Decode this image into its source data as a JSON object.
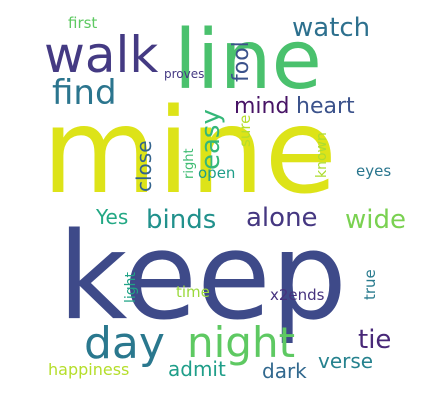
{
  "words": [
    {
      "text": "mine",
      "color": "#dde318"
    },
    {
      "text": "keep",
      "color": "#3e4a89"
    },
    {
      "text": "line",
      "color": "#4ac16d"
    },
    {
      "text": "walk",
      "color": "#443a83"
    },
    {
      "text": "night",
      "color": "#5ec962"
    },
    {
      "text": "day",
      "color": "#2a788e"
    },
    {
      "text": "find",
      "color": "#2b758e"
    },
    {
      "text": "binds",
      "color": "#21918c"
    },
    {
      "text": "alone",
      "color": "#453781"
    },
    {
      "text": "watch",
      "color": "#2d708e"
    },
    {
      "text": "heart",
      "color": "#3b528b"
    },
    {
      "text": "mind",
      "color": "#471365"
    },
    {
      "text": "easy",
      "color": "#35b779"
    },
    {
      "text": "fool",
      "color": "#3b528b"
    },
    {
      "text": "close",
      "color": "#33638d"
    },
    {
      "text": "wide",
      "color": "#7ad151"
    },
    {
      "text": "Yes",
      "color": "#22a884"
    },
    {
      "text": "tie",
      "color": "#482878"
    },
    {
      "text": "verse",
      "color": "#26828e"
    },
    {
      "text": "dark",
      "color": "#31688e"
    },
    {
      "text": "admit",
      "color": "#1f9e89"
    },
    {
      "text": "happiness",
      "color": "#b5de2b"
    },
    {
      "text": "first",
      "color": "#5ec962"
    },
    {
      "text": "proves",
      "color": "#443983"
    },
    {
      "text": "right",
      "color": "#3fbc73"
    },
    {
      "text": "sure",
      "color": "#b5de2b"
    },
    {
      "text": "open",
      "color": "#1f9e89"
    },
    {
      "text": "known",
      "color": "#addc30"
    },
    {
      "text": "eyes",
      "color": "#2a768e"
    },
    {
      "text": "light",
      "color": "#20a386"
    },
    {
      "text": "time",
      "color": "#9bd93c"
    },
    {
      "text": "x2ends",
      "color": "#46327e"
    },
    {
      "text": "true",
      "color": "#297b8e"
    }
  ]
}
